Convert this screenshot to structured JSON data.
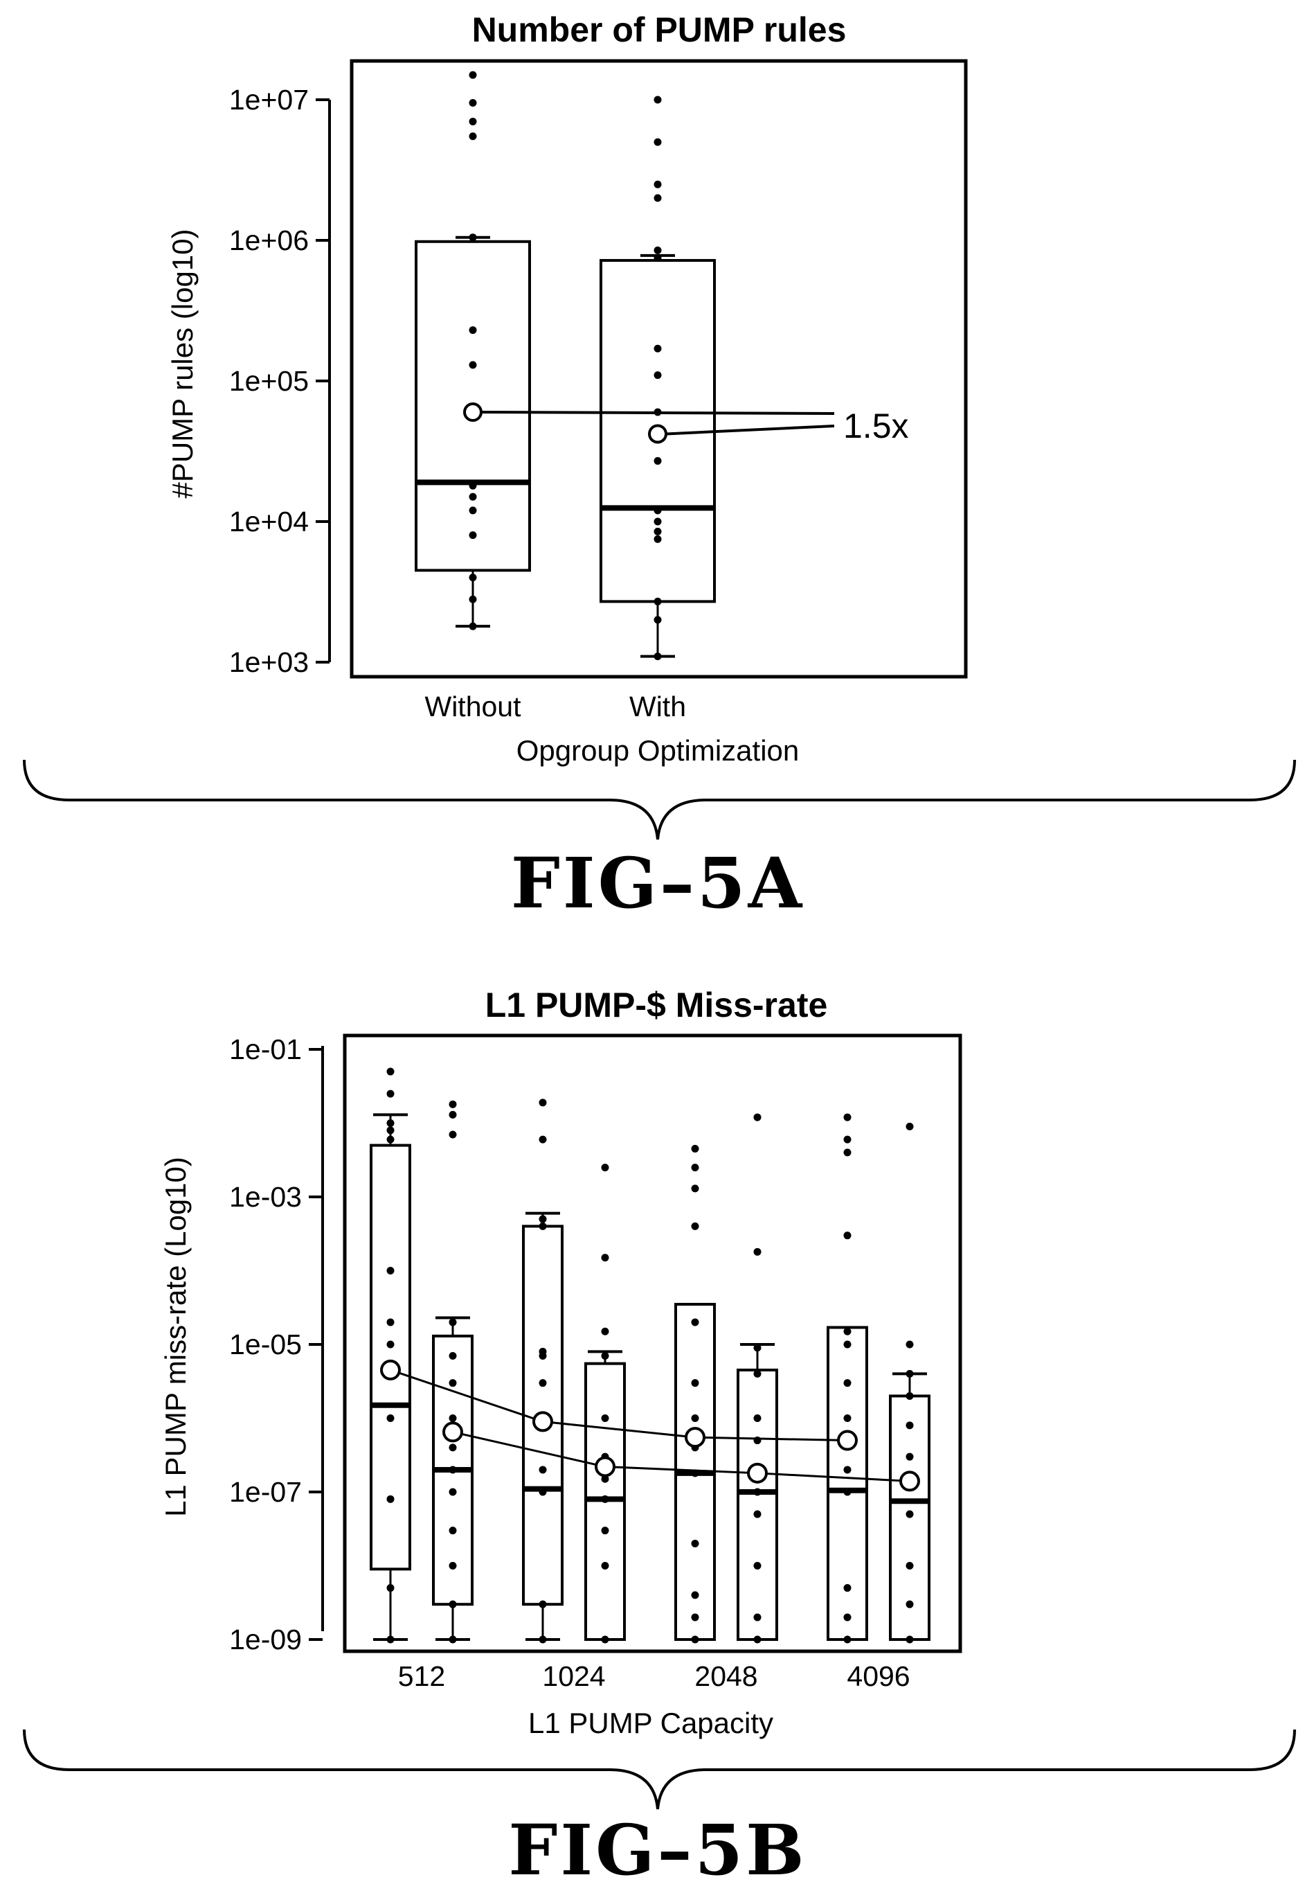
{
  "chart_data": [
    {
      "type": "box",
      "title": "Number of PUMP rules",
      "ylabel": "#PUMP rules (log10)",
      "xlabel": "Opgroup Optimization",
      "yscale": "log10",
      "ylim": [
        1000,
        30000000
      ],
      "yticks": [
        {
          "value": 1000,
          "label": "1e+03"
        },
        {
          "value": 10000,
          "label": "1e+04"
        },
        {
          "value": 100000,
          "label": "1e+05"
        },
        {
          "value": 1000000,
          "label": "1e+06"
        },
        {
          "value": 10000000,
          "label": "1e+07"
        }
      ],
      "categories": [
        "Without",
        "With"
      ],
      "boxes": [
        {
          "category": "Without",
          "q1": 4500,
          "median": 19000,
          "q3": 980000,
          "whisker_low": 1800,
          "whisker_high": 1050000,
          "mean": 60000,
          "points": [
            1800,
            2800,
            4000,
            8000,
            12000,
            15000,
            18000,
            130000,
            230000,
            1050000,
            5500000,
            7000000,
            9500000,
            15000000
          ]
        },
        {
          "category": "With",
          "q1": 2700,
          "median": 12500,
          "q3": 720000,
          "whisker_low": 1100,
          "whisker_high": 780000,
          "mean": 42000,
          "points": [
            1100,
            2000,
            2700,
            7500,
            8500,
            10000,
            12000,
            27000,
            60000,
            110000,
            170000,
            750000,
            850000,
            2000000,
            2500000,
            5000000,
            10000000
          ]
        }
      ],
      "annotation": {
        "text": "1.5x"
      },
      "figure_label": "FIG–5A"
    },
    {
      "type": "box",
      "title": "L1 PUMP-$ Miss-rate",
      "ylabel": "L1 PUMP miss-rate (Log10)",
      "xlabel": "L1 PUMP Capacity",
      "yscale": "log10",
      "ylim": [
        1e-09,
        0.1
      ],
      "yticks": [
        {
          "value": 1e-09,
          "label": "1e-09"
        },
        {
          "value": 1e-07,
          "label": "1e-07"
        },
        {
          "value": 1e-05,
          "label": "1e-05"
        },
        {
          "value": 0.001,
          "label": "1e-03"
        },
        {
          "value": 0.1,
          "label": "1e-01"
        }
      ],
      "categories": [
        "512",
        "1024",
        "2048",
        "4096"
      ],
      "series": [
        {
          "name": "",
          "means": [
            4.5e-06,
            9e-07,
            5.5e-07,
            5e-07
          ],
          "boxes": [
            {
              "category": "512",
              "q1": 9e-09,
              "median": 1.5e-06,
              "q3": 0.005,
              "whisker_low": 1e-09,
              "whisker_high": 0.013,
              "points": [
                1e-09,
                5e-09,
                8e-08,
                1e-06,
                4e-06,
                1e-05,
                2e-05,
                0.0001,
                0.006,
                0.008,
                0.01,
                0.025,
                0.05
              ]
            },
            {
              "category": "1024",
              "q1": 3e-09,
              "median": 1.1e-07,
              "q3": 0.0004,
              "whisker_low": 1e-09,
              "whisker_high": 0.0006,
              "points": [
                1e-09,
                3e-09,
                1e-07,
                2e-07,
                1e-06,
                3e-06,
                7e-06,
                8e-06,
                0.0004,
                0.0005,
                0.006,
                0.019
              ]
            },
            {
              "category": "2048",
              "q1": 1e-09,
              "median": 1.8e-07,
              "q3": 3.5e-05,
              "whisker_low": 1e-09,
              "whisker_high": 3.5e-05,
              "points": [
                1e-09,
                2e-09,
                4e-09,
                2e-08,
                1.8e-07,
                4e-07,
                1e-06,
                3e-06,
                2e-05,
                0.0004,
                0.0013,
                0.0025,
                0.0045
              ]
            },
            {
              "category": "4096",
              "q1": 1e-09,
              "median": 1.05e-07,
              "q3": 1.7e-05,
              "whisker_low": 1e-09,
              "whisker_high": 1.7e-05,
              "points": [
                1e-09,
                2e-09,
                5e-09,
                1e-07,
                2e-07,
                5e-07,
                1e-06,
                3e-06,
                1e-05,
                1.5e-05,
                0.0003,
                0.004,
                0.006,
                0.012
              ]
            }
          ]
        },
        {
          "name": "",
          "means": [
            6.5e-07,
            2.2e-07,
            1.8e-07,
            1.4e-07
          ],
          "boxes": [
            {
              "category": "512",
              "q1": 3e-09,
              "median": 2e-07,
              "q3": 1.3e-05,
              "whisker_low": 1e-09,
              "whisker_high": 2.3e-05,
              "points": [
                1e-09,
                3e-09,
                1e-08,
                3e-08,
                1e-07,
                2e-07,
                4e-07,
                1e-06,
                3e-06,
                7e-06,
                2e-05,
                0.007,
                0.013,
                0.018
              ]
            },
            {
              "category": "1024",
              "q1": 1e-09,
              "median": 8e-08,
              "q3": 5.5e-06,
              "whisker_low": 1e-09,
              "whisker_high": 8e-06,
              "points": [
                1e-09,
                1e-08,
                3e-08,
                8e-08,
                1.5e-07,
                3e-07,
                1e-06,
                7e-06,
                1.5e-05,
                0.00015,
                0.0025
              ]
            },
            {
              "category": "2048",
              "q1": 1e-09,
              "median": 1e-07,
              "q3": 4.5e-06,
              "whisker_low": 1e-09,
              "whisker_high": 1e-05,
              "points": [
                1e-09,
                2e-09,
                1e-08,
                5e-08,
                1e-07,
                2e-07,
                5e-07,
                1e-06,
                4e-06,
                9e-06,
                0.00018,
                0.012
              ]
            },
            {
              "category": "4096",
              "q1": 1e-09,
              "median": 7.5e-08,
              "q3": 2e-06,
              "whisker_low": 1e-09,
              "whisker_high": 4e-06,
              "points": [
                1e-09,
                3e-09,
                1e-08,
                5e-08,
                1.3e-07,
                3e-07,
                8e-07,
                2e-06,
                4e-06,
                1e-05,
                0.009
              ]
            }
          ]
        }
      ],
      "figure_label": "FIG–5B"
    }
  ]
}
